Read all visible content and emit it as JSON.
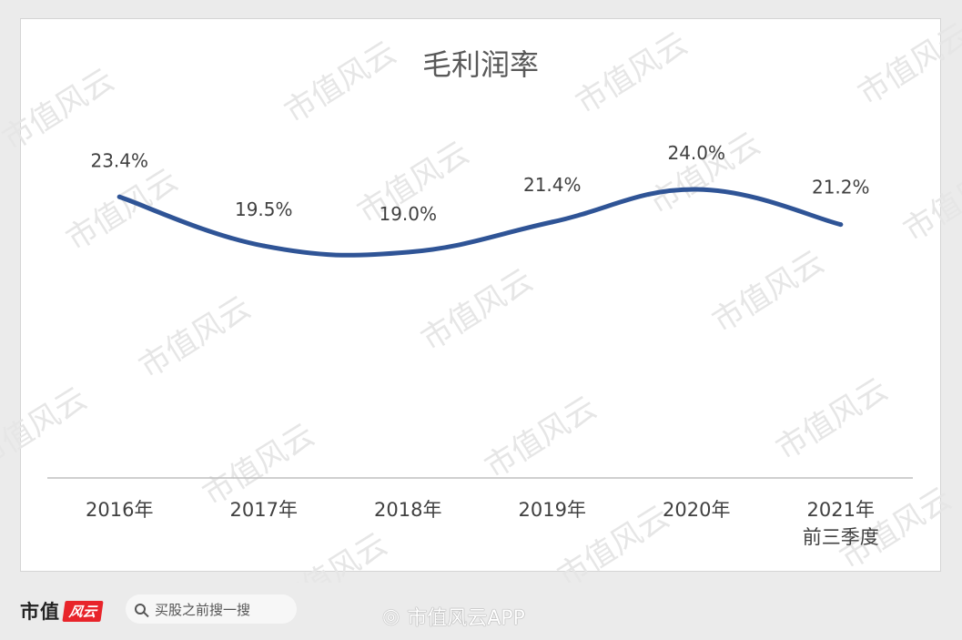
{
  "chart_data": {
    "type": "line",
    "title": "毛利润率",
    "categories": [
      "2016年",
      "2017年",
      "2018年",
      "2019年",
      "2020年",
      [
        "2021年",
        "前三季度"
      ]
    ],
    "values": [
      23.4,
      19.5,
      19.0,
      21.4,
      24.0,
      21.2
    ],
    "data_labels": [
      "23.4%",
      "19.5%",
      "19.0%",
      "21.4%",
      "24.0%",
      "21.2%"
    ],
    "unit": "%",
    "line_style": "smooth",
    "grid": false,
    "legend": "none"
  },
  "colors": {
    "line": "#2f5496",
    "title": "#595959",
    "labels": "#404040",
    "axis": "#bfbfbf",
    "brand_red": "#e8242a"
  },
  "watermark": "市值风云",
  "footer": {
    "logo_text": "市值",
    "logo_mark": "风云",
    "search_icon": "search-icon",
    "search_text": "买股之前搜一搜",
    "weibo_icon": "weibo-icon",
    "weibo_text": "市值风云APP"
  }
}
